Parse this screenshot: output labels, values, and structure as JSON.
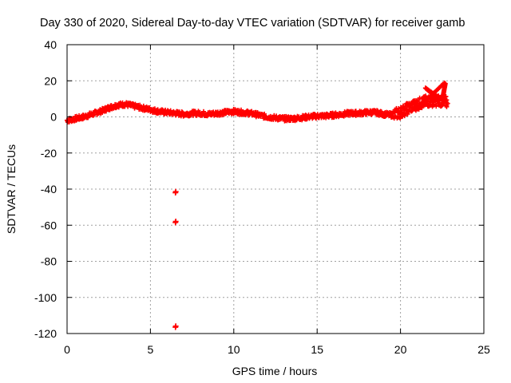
{
  "chart_data": {
    "type": "scatter",
    "title": "Day 330 of 2020, Sidereal Day-to-day VTEC variation (SDTVAR) for receiver gamb",
    "xlabel": "GPS time / hours",
    "ylabel": "SDTVAR / TECUs",
    "xlim": [
      0,
      25
    ],
    "ylim": [
      -120,
      40
    ],
    "xticks": [
      0,
      5,
      10,
      15,
      20,
      25
    ],
    "yticks": [
      -120,
      -100,
      -80,
      -60,
      -40,
      -20,
      0,
      20,
      40
    ],
    "xtick_labels": [
      "0",
      "5",
      "10",
      "15",
      "20",
      "25"
    ],
    "ytick_labels": [
      "-120",
      "-100",
      "-80",
      "-60",
      "-40",
      "-20",
      "0",
      "20",
      "40"
    ],
    "grid": true,
    "marker": "plus",
    "color": "#ff0000",
    "trend": {
      "x": [
        0,
        0.5,
        1,
        1.5,
        2,
        2.5,
        3,
        3.5,
        4,
        4.5,
        5,
        5.5,
        6,
        6.5,
        7,
        7.5,
        8,
        8.5,
        9,
        9.5,
        10,
        10.5,
        11,
        11.5,
        12,
        12.5,
        13,
        13.5,
        14,
        14.5,
        15,
        15.5,
        16,
        16.5,
        17,
        17.5,
        18,
        18.5,
        19,
        19.5,
        20,
        20.5,
        21,
        21.5,
        22,
        22.5,
        22.8
      ],
      "y": [
        -2,
        -1,
        0,
        1.5,
        3,
        5,
        6.5,
        7,
        6,
        5,
        4,
        3,
        2.5,
        2,
        1.5,
        2,
        2,
        1.5,
        2,
        2.5,
        3,
        2.5,
        2,
        1,
        0,
        -0.5,
        -1,
        -1,
        -0.5,
        0,
        0.5,
        0.5,
        1,
        1.5,
        2,
        2,
        2.5,
        2.5,
        1.5,
        1,
        2.5,
        5,
        7,
        8.5,
        9,
        9,
        8
      ]
    },
    "outliers": {
      "x": [
        6.5,
        6.5,
        6.5
      ],
      "y": [
        -42,
        -58.5,
        -116.5
      ]
    },
    "spike": {
      "x": [
        21.5,
        22.0,
        22.5,
        22.7
      ],
      "y": [
        16,
        12,
        9,
        19
      ]
    }
  }
}
